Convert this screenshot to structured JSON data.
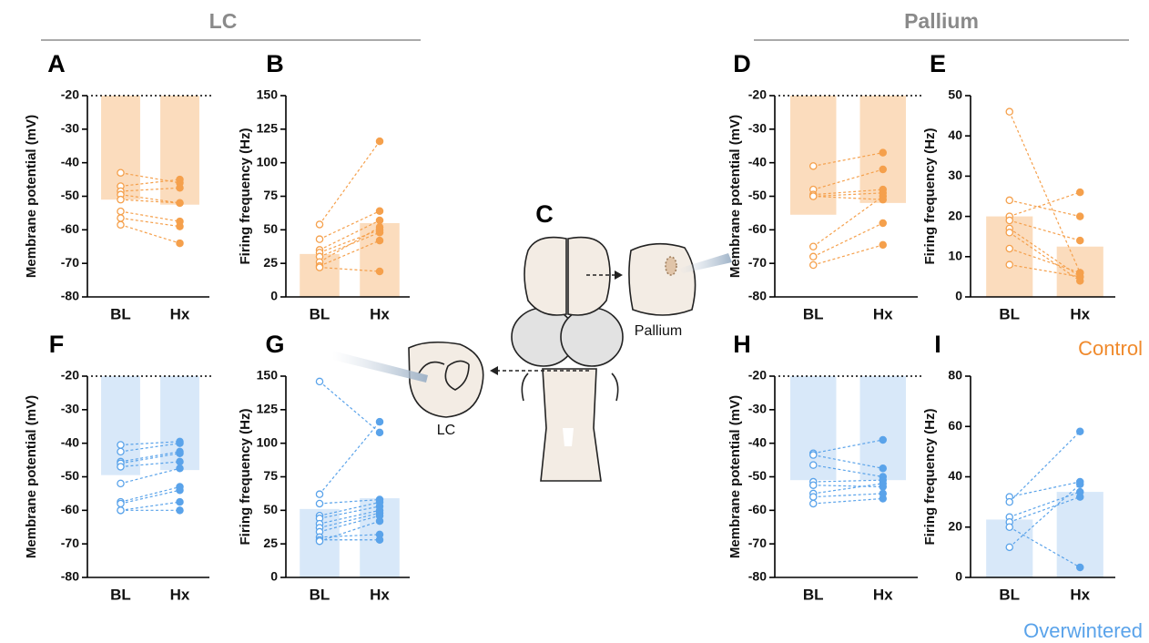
{
  "labels": {
    "lc_header": "LC",
    "pallium_header": "Pallium",
    "panel_c": "C",
    "pallium_region": "Pallium",
    "lc_region": "LC",
    "control": "Control",
    "overwintered": "Overwintered"
  },
  "chart_data": [
    {
      "type": "paired-bar",
      "panel": "A",
      "ylabel": "Membrane potential (mV)",
      "categories": [
        "BL",
        "Hx"
      ],
      "values": [
        -51,
        -52.5
      ],
      "pairs": [
        [
          -43,
          -46
        ],
        [
          -47,
          -45
        ],
        [
          -48.5,
          -47.5
        ],
        [
          -49.5,
          -52
        ],
        [
          -51,
          -52
        ],
        [
          -54.5,
          -57.5
        ],
        [
          -56.5,
          -59
        ],
        [
          -58.5,
          -64
        ]
      ],
      "markers": [
        "open",
        "filled"
      ],
      "ylim": [
        -80,
        -20
      ],
      "yticks": [
        -80,
        -70,
        -60,
        -50,
        -40,
        -30,
        -20
      ],
      "ref_line": -20,
      "color": "#f5a04c",
      "bar_color": "#fbdcbd"
    },
    {
      "type": "paired-bar",
      "panel": "B",
      "ylabel": "Firing frequency (Hz)",
      "categories": [
        "BL",
        "Hx"
      ],
      "values": [
        32,
        55
      ],
      "pairs": [
        [
          54,
          116
        ],
        [
          43,
          64
        ],
        [
          35,
          57
        ],
        [
          33,
          50
        ],
        [
          30,
          48
        ],
        [
          26,
          52
        ],
        [
          23,
          42
        ],
        [
          22,
          19
        ]
      ],
      "markers": [
        "open",
        "filled"
      ],
      "ylim": [
        0,
        150
      ],
      "yticks": [
        0,
        25,
        50,
        75,
        100,
        125,
        150
      ],
      "color": "#f5a04c",
      "bar_color": "#fbdcbd"
    },
    {
      "type": "paired-bar",
      "panel": "D",
      "ylabel": "Membrane potential (mV)",
      "categories": [
        "BL",
        "Hx"
      ],
      "values": [
        -55.5,
        -52
      ],
      "pairs": [
        [
          -41,
          -37
        ],
        [
          -48,
          -42
        ],
        [
          -49.5,
          -48
        ],
        [
          -50,
          -49
        ],
        [
          -50,
          -51
        ],
        [
          -65,
          -50
        ],
        [
          -68,
          -58
        ],
        [
          -70.5,
          -64.5
        ]
      ],
      "markers": [
        "open",
        "filled"
      ],
      "ylim": [
        -80,
        -20
      ],
      "yticks": [
        -80,
        -70,
        -60,
        -50,
        -40,
        -30,
        -20
      ],
      "ref_line": -20,
      "color": "#f5a04c",
      "bar_color": "#fbdcbd"
    },
    {
      "type": "paired-bar",
      "panel": "E",
      "ylabel": "Firing frequency (Hz)",
      "categories": [
        "BL",
        "Hx"
      ],
      "values": [
        20,
        12.5
      ],
      "pairs": [
        [
          46,
          6
        ],
        [
          24,
          20
        ],
        [
          20,
          26
        ],
        [
          19,
          14
        ],
        [
          17,
          5
        ],
        [
          16,
          4
        ],
        [
          12,
          6
        ],
        [
          8,
          5
        ]
      ],
      "markers": [
        "open",
        "filled"
      ],
      "ylim": [
        0,
        50
      ],
      "yticks": [
        0,
        10,
        20,
        30,
        40,
        50
      ],
      "color": "#f5a04c",
      "bar_color": "#fbdcbd"
    },
    {
      "type": "paired-bar",
      "panel": "F",
      "ylabel": "Membrane potential (mV)",
      "categories": [
        "BL",
        "Hx"
      ],
      "values": [
        -49.5,
        -48
      ],
      "pairs": [
        [
          -40.5,
          -39.5
        ],
        [
          -42.5,
          -40
        ],
        [
          -45.5,
          -42.5
        ],
        [
          -46,
          -43
        ],
        [
          -47,
          -45.5
        ],
        [
          -52,
          -47.5
        ],
        [
          -57.5,
          -53
        ],
        [
          -58,
          -54
        ],
        [
          -60,
          -57.5
        ],
        [
          -60,
          -60
        ]
      ],
      "markers": [
        "open",
        "filled"
      ],
      "ylim": [
        -80,
        -20
      ],
      "yticks": [
        -80,
        -70,
        -60,
        -50,
        -40,
        -30,
        -20
      ],
      "ref_line": -20,
      "color": "#5aa3ea",
      "bar_color": "#d8e8f9"
    },
    {
      "type": "paired-bar",
      "panel": "G",
      "ylabel": "Firing frequency (Hz)",
      "categories": [
        "BL",
        "Hx"
      ],
      "values": [
        51,
        59
      ],
      "pairs": [
        [
          146,
          108
        ],
        [
          62,
          116
        ],
        [
          55,
          58
        ],
        [
          46,
          56
        ],
        [
          44,
          53
        ],
        [
          40,
          50
        ],
        [
          37,
          48
        ],
        [
          34,
          46
        ],
        [
          30,
          32
        ],
        [
          28,
          28
        ],
        [
          27,
          42
        ]
      ],
      "markers": [
        "open",
        "filled"
      ],
      "ylim": [
        0,
        150
      ],
      "yticks": [
        0,
        25,
        50,
        75,
        100,
        125,
        150
      ],
      "color": "#5aa3ea",
      "bar_color": "#d8e8f9"
    },
    {
      "type": "paired-bar",
      "panel": "H",
      "ylabel": "Membrane potential (mV)",
      "categories": [
        "BL",
        "Hx"
      ],
      "values": [
        -51,
        -51
      ],
      "pairs": [
        [
          -43,
          -39
        ],
        [
          -43.5,
          -47.5
        ],
        [
          -46.5,
          -50
        ],
        [
          -51.5,
          -51
        ],
        [
          -52.5,
          -53
        ],
        [
          -55,
          -52
        ],
        [
          -56,
          -55
        ],
        [
          -58,
          -56.5
        ]
      ],
      "markers": [
        "open",
        "filled"
      ],
      "ylim": [
        -80,
        -20
      ],
      "yticks": [
        -80,
        -70,
        -60,
        -50,
        -40,
        -30,
        -20
      ],
      "ref_line": -20,
      "color": "#5aa3ea",
      "bar_color": "#d8e8f9"
    },
    {
      "type": "paired-bar",
      "panel": "I",
      "ylabel": "Firing frequency (Hz)",
      "categories": [
        "BL",
        "Hx"
      ],
      "values": [
        23,
        34
      ],
      "pairs": [
        [
          32,
          38
        ],
        [
          30,
          58
        ],
        [
          24,
          34
        ],
        [
          22,
          32
        ],
        [
          20,
          4
        ],
        [
          12,
          37
        ]
      ],
      "markers": [
        "open",
        "filled"
      ],
      "ylim": [
        0,
        80
      ],
      "yticks": [
        0,
        20,
        40,
        60,
        80
      ],
      "color": "#5aa3ea",
      "bar_color": "#d8e8f9"
    }
  ]
}
